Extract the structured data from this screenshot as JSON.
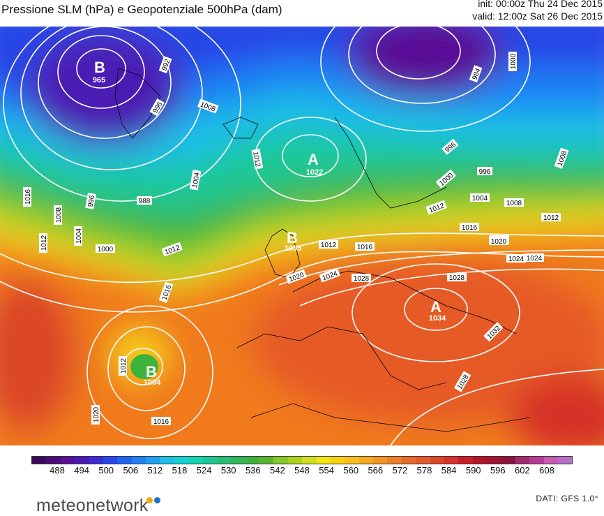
{
  "header": {
    "title": "Pressione SLM (hPa) e Geopotenziale 500hPa (dam)",
    "init": "init: 00:00z Thu 24 Dec 2015",
    "valid": "valid: 12:00z Sat 26 Dec 2015"
  },
  "pressure_centers": [
    {
      "letter": "B",
      "value": "965"
    },
    {
      "letter": "A",
      "value": "1022"
    },
    {
      "letter": "B",
      "value": "1005"
    },
    {
      "letter": "A",
      "value": "1034"
    },
    {
      "letter": "B",
      "value": "1004"
    }
  ],
  "isobar_labels": [
    "992",
    "996",
    "1008",
    "1012",
    "1004",
    "988",
    "996",
    "1008",
    "1004",
    "1000",
    "1012",
    "1016",
    "1016",
    "1012",
    "1016",
    "1020",
    "1024",
    "1028",
    "1028",
    "1020",
    "1024",
    "1032",
    "1028",
    "1012",
    "1020",
    "1016",
    "984",
    "1000",
    "996",
    "996",
    "1000",
    "1004",
    "1008",
    "1008",
    "1012",
    "1012",
    "1016",
    "1020",
    "1024",
    "1012"
  ],
  "colorbar": {
    "ticks": [
      "488",
      "494",
      "500",
      "506",
      "512",
      "518",
      "524",
      "530",
      "536",
      "542",
      "548",
      "554",
      "560",
      "566",
      "572",
      "578",
      "584",
      "590",
      "596",
      "602",
      "608"
    ],
    "colors": [
      "#3c0a5a",
      "#4b0a78",
      "#5a0f96",
      "#4b1ab4",
      "#3c2ad2",
      "#2846e6",
      "#1e64f0",
      "#1e82f5",
      "#1ea0f0",
      "#1ebee6",
      "#14d2d2",
      "#14d2b4",
      "#1ec896",
      "#28be78",
      "#32b45a",
      "#3cb43c",
      "#5ab432",
      "#82c828",
      "#aad21e",
      "#d2dc1e",
      "#f0e614",
      "#fad214",
      "#fabe1e",
      "#f5aa1e",
      "#f09628",
      "#eb8228",
      "#e66e28",
      "#e15a28",
      "#dc4628",
      "#d73228",
      "#c81e28",
      "#b41428",
      "#a01432",
      "#8c143c",
      "#a0286e",
      "#b43c96",
      "#c85ab4",
      "#b46ec8"
    ]
  },
  "footer": {
    "logo": "meteonetwork",
    "source": "DATI: GFS 1.0°"
  }
}
